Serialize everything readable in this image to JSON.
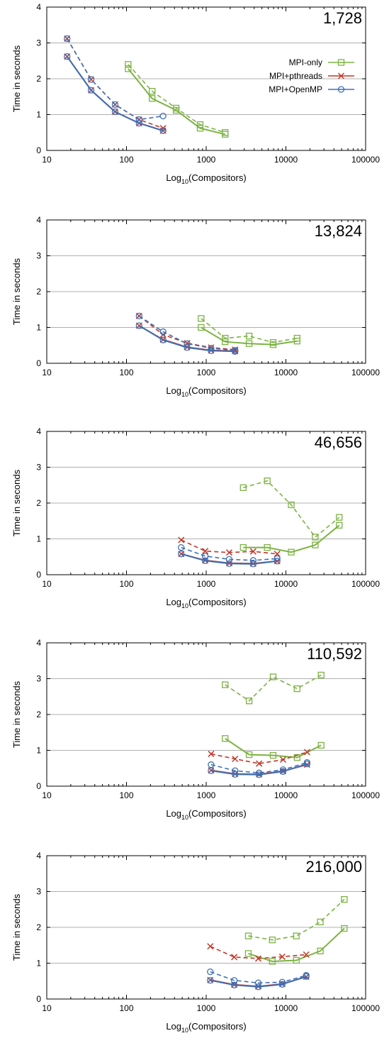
{
  "legend": [
    {
      "label": "MPI-only",
      "color": "#7cb342",
      "marker": "square"
    },
    {
      "label": "MPI+pthreads",
      "color": "#c0392b",
      "marker": "x"
    },
    {
      "label": "MPI+OpenMP",
      "color": "#3d6fb5",
      "marker": "circle"
    }
  ],
  "chart_data": [
    {
      "type": "line",
      "annotation": "1,728",
      "xlabel_base": "Log",
      "xlabel_sub": "10",
      "xlabel_rest": "(Compositors)",
      "ylabel": "Time in seconds",
      "xscale": "log",
      "xlim": [
        10,
        100000
      ],
      "ylim": [
        0,
        4
      ],
      "xticks": [
        "10",
        "100",
        "1000",
        "10000",
        "100000"
      ],
      "yticks": [
        "0",
        "1",
        "2",
        "3",
        "4"
      ],
      "grid": true,
      "legend_position": "upper-right",
      "series": [
        {
          "name": "MPI-only",
          "style": "solid",
          "x": [
            105,
            210,
            420,
            840,
            1728
          ],
          "y": [
            2.28,
            1.45,
            1.12,
            0.62,
            0.45
          ]
        },
        {
          "style": "dashed",
          "x": [
            105,
            210,
            420,
            840,
            1728
          ],
          "y": [
            2.4,
            1.65,
            1.18,
            0.72,
            0.5
          ]
        },
        {
          "name": "MPI+pthreads",
          "style": "solid",
          "x": [
            18,
            36,
            72,
            144,
            288
          ],
          "y": [
            2.62,
            1.68,
            1.08,
            0.76,
            0.55
          ]
        },
        {
          "style": "dashed",
          "x": [
            18,
            36,
            72,
            144,
            288
          ],
          "y": [
            3.12,
            1.98,
            1.28,
            0.86,
            0.62
          ]
        },
        {
          "name": "MPI+OpenMP",
          "style": "solid",
          "x": [
            18,
            36,
            72,
            144,
            288
          ],
          "y": [
            2.62,
            1.68,
            1.08,
            0.76,
            0.55
          ]
        },
        {
          "style": "dashed",
          "x": [
            18,
            36,
            72,
            144,
            288
          ],
          "y": [
            3.12,
            1.98,
            1.28,
            0.86,
            0.96
          ]
        }
      ]
    },
    {
      "type": "line",
      "annotation": "13,824",
      "xlabel_base": "Log",
      "xlabel_sub": "10",
      "xlabel_rest": "(Compositors)",
      "ylabel": "Time in seconds",
      "xscale": "log",
      "xlim": [
        10,
        100000
      ],
      "ylim": [
        0,
        4
      ],
      "xticks": [
        "10",
        "100",
        "1000",
        "10000",
        "100000"
      ],
      "yticks": [
        "0",
        "1",
        "2",
        "3",
        "4"
      ],
      "grid": true,
      "series": [
        {
          "name": "MPI-only",
          "style": "solid",
          "x": [
            864,
            1728,
            3456,
            6912,
            13824
          ],
          "y": [
            1.0,
            0.6,
            0.55,
            0.52,
            0.62
          ]
        },
        {
          "style": "dashed",
          "x": [
            864,
            1728,
            3456,
            6912,
            13824
          ],
          "y": [
            1.25,
            0.7,
            0.76,
            0.58,
            0.7
          ]
        },
        {
          "name": "MPI+pthreads",
          "style": "solid",
          "x": [
            144,
            288,
            576,
            1152,
            2304
          ],
          "y": [
            1.05,
            0.66,
            0.45,
            0.36,
            0.34
          ]
        },
        {
          "style": "dashed",
          "x": [
            144,
            288,
            576,
            1152,
            2304
          ],
          "y": [
            1.32,
            0.8,
            0.56,
            0.44,
            0.38
          ]
        },
        {
          "name": "MPI+OpenMP",
          "style": "solid",
          "x": [
            144,
            288,
            576,
            1152,
            2304
          ],
          "y": [
            1.05,
            0.65,
            0.44,
            0.35,
            0.33
          ]
        },
        {
          "style": "dashed",
          "x": [
            144,
            288,
            576,
            1152,
            2304
          ],
          "y": [
            1.32,
            0.88,
            0.55,
            0.42,
            0.36
          ]
        }
      ]
    },
    {
      "type": "line",
      "annotation": "46,656",
      "xlabel_base": "Log",
      "xlabel_sub": "10",
      "xlabel_rest": "(Compositors)",
      "ylabel": "Time in seconds",
      "xscale": "log",
      "xlim": [
        10,
        100000
      ],
      "ylim": [
        0,
        4
      ],
      "xticks": [
        "10",
        "100",
        "1000",
        "10000",
        "100000"
      ],
      "yticks": [
        "0",
        "1",
        "2",
        "3",
        "4"
      ],
      "grid": true,
      "series": [
        {
          "name": "MPI-only",
          "style": "solid",
          "x": [
            2916,
            5832,
            11664,
            23328,
            46656
          ],
          "y": [
            0.76,
            0.76,
            0.63,
            0.83,
            1.38
          ]
        },
        {
          "style": "dashed",
          "x": [
            2916,
            5832,
            11664,
            23328,
            46656
          ],
          "y": [
            2.43,
            2.62,
            1.95,
            1.05,
            1.6
          ]
        },
        {
          "name": "MPI+pthreads",
          "style": "solid",
          "x": [
            486,
            972,
            1944,
            3888,
            7776
          ],
          "y": [
            0.58,
            0.4,
            0.32,
            0.31,
            0.38
          ]
        },
        {
          "style": "dashed",
          "x": [
            486,
            972,
            1944,
            3888,
            7776
          ],
          "y": [
            0.97,
            0.66,
            0.62,
            0.65,
            0.58
          ]
        },
        {
          "name": "MPI+OpenMP",
          "style": "solid",
          "x": [
            486,
            972,
            1944,
            3888,
            7776
          ],
          "y": [
            0.58,
            0.39,
            0.31,
            0.3,
            0.38
          ]
        },
        {
          "style": "dashed",
          "x": [
            486,
            972,
            1944,
            3888,
            7776
          ],
          "y": [
            0.76,
            0.52,
            0.43,
            0.4,
            0.45
          ]
        }
      ]
    },
    {
      "type": "line",
      "annotation": "110,592",
      "xlabel_base": "Log",
      "xlabel_sub": "10",
      "xlabel_rest": "(Compositors)",
      "ylabel": "Time in seconds",
      "xscale": "log",
      "xlim": [
        10,
        100000
      ],
      "ylim": [
        0,
        4
      ],
      "xticks": [
        "10",
        "100",
        "1000",
        "10000",
        "100000"
      ],
      "yticks": [
        "0",
        "1",
        "2",
        "3",
        "4"
      ],
      "grid": true,
      "series": [
        {
          "name": "MPI-only",
          "style": "solid",
          "x": [
            1728,
            3456,
            6912,
            13824,
            27648
          ],
          "y": [
            1.33,
            0.88,
            0.86,
            0.8,
            1.14
          ]
        },
        {
          "style": "dashed",
          "x": [
            1728,
            3456,
            6912,
            13824,
            27648
          ],
          "y": [
            2.83,
            2.38,
            3.05,
            2.72,
            3.1
          ]
        },
        {
          "name": "MPI+pthreads",
          "style": "solid",
          "x": [
            1152,
            2304,
            4608,
            9216,
            18432
          ],
          "y": [
            0.44,
            0.34,
            0.33,
            0.42,
            0.6
          ]
        },
        {
          "style": "dashed",
          "x": [
            1152,
            2304,
            4608,
            9216,
            18432
          ],
          "y": [
            0.9,
            0.76,
            0.63,
            0.74,
            0.95
          ]
        },
        {
          "name": "MPI+OpenMP",
          "style": "solid",
          "x": [
            1152,
            2304,
            4608,
            9216,
            18432
          ],
          "y": [
            0.43,
            0.33,
            0.32,
            0.41,
            0.62
          ]
        },
        {
          "style": "dashed",
          "x": [
            1152,
            2304,
            4608,
            9216,
            18432
          ],
          "y": [
            0.6,
            0.43,
            0.37,
            0.46,
            0.66
          ]
        }
      ]
    },
    {
      "type": "line",
      "annotation": "216,000",
      "xlabel_base": "Log",
      "xlabel_sub": "10",
      "xlabel_rest": "(Compositors)",
      "ylabel": "Time in seconds",
      "xscale": "log",
      "xlim": [
        10,
        100000
      ],
      "ylim": [
        0,
        4
      ],
      "xticks": [
        "10",
        "100",
        "1000",
        "10000",
        "100000"
      ],
      "yticks": [
        "0",
        "1",
        "2",
        "3",
        "4"
      ],
      "grid": true,
      "series": [
        {
          "name": "MPI-only",
          "style": "solid",
          "x": [
            3375,
            6750,
            13500,
            27000,
            54000
          ],
          "y": [
            1.27,
            1.05,
            1.08,
            1.34,
            1.97
          ]
        },
        {
          "style": "dashed",
          "x": [
            3375,
            6750,
            13500,
            27000,
            54000
          ],
          "y": [
            1.76,
            1.65,
            1.76,
            2.15,
            2.78
          ]
        },
        {
          "name": "MPI+pthreads",
          "style": "solid",
          "x": [
            1125,
            2250,
            4500,
            9000,
            18000
          ],
          "y": [
            0.53,
            0.4,
            0.35,
            0.42,
            0.62
          ]
        },
        {
          "style": "dashed",
          "x": [
            1125,
            2250,
            4500,
            9000,
            18000
          ],
          "y": [
            1.47,
            1.17,
            1.13,
            1.18,
            1.24
          ]
        },
        {
          "name": "MPI+OpenMP",
          "style": "solid",
          "x": [
            1125,
            2250,
            4500,
            9000,
            18000
          ],
          "y": [
            0.52,
            0.39,
            0.34,
            0.41,
            0.63
          ]
        },
        {
          "style": "dashed",
          "x": [
            1125,
            2250,
            4500,
            9000,
            18000
          ],
          "y": [
            0.76,
            0.52,
            0.45,
            0.47,
            0.66
          ]
        }
      ]
    }
  ]
}
